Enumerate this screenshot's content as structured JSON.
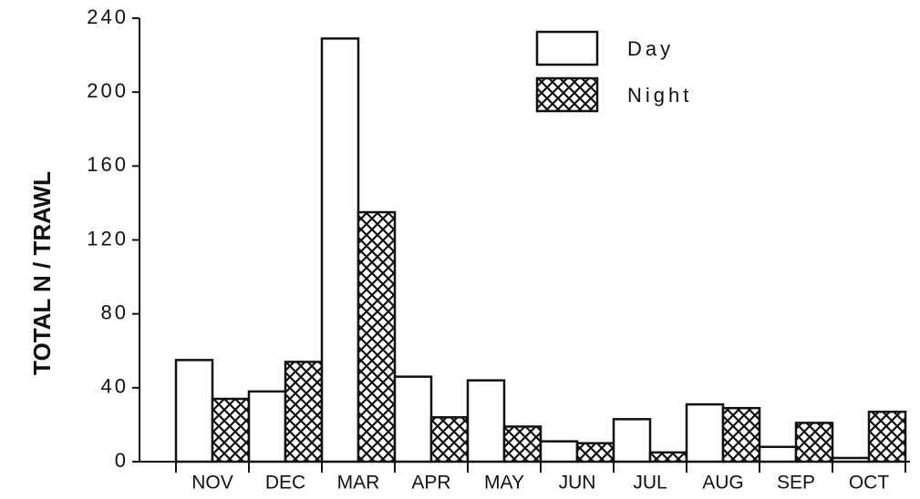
{
  "chart_data": {
    "type": "bar",
    "y_label": "TOTAL N / TRAWL",
    "categories": [
      "NOV",
      "DEC",
      "MAR",
      "APR",
      "MAY",
      "JUN",
      "JUL",
      "AUG",
      "SEP",
      "OCT"
    ],
    "series": [
      {
        "name": "Day",
        "color": "#ffffff",
        "pattern": "none",
        "values": [
          55,
          38,
          229,
          46,
          44,
          11,
          23,
          31,
          8,
          2
        ]
      },
      {
        "name": "Night",
        "color": "#ffffff",
        "pattern": "crosshatch",
        "values": [
          34,
          54,
          135,
          24,
          19,
          10,
          5,
          29,
          21,
          27
        ]
      }
    ],
    "ylim": [
      0,
      240
    ],
    "yticks": [
      0,
      40,
      80,
      120,
      160,
      200,
      240
    ],
    "grid": false
  }
}
